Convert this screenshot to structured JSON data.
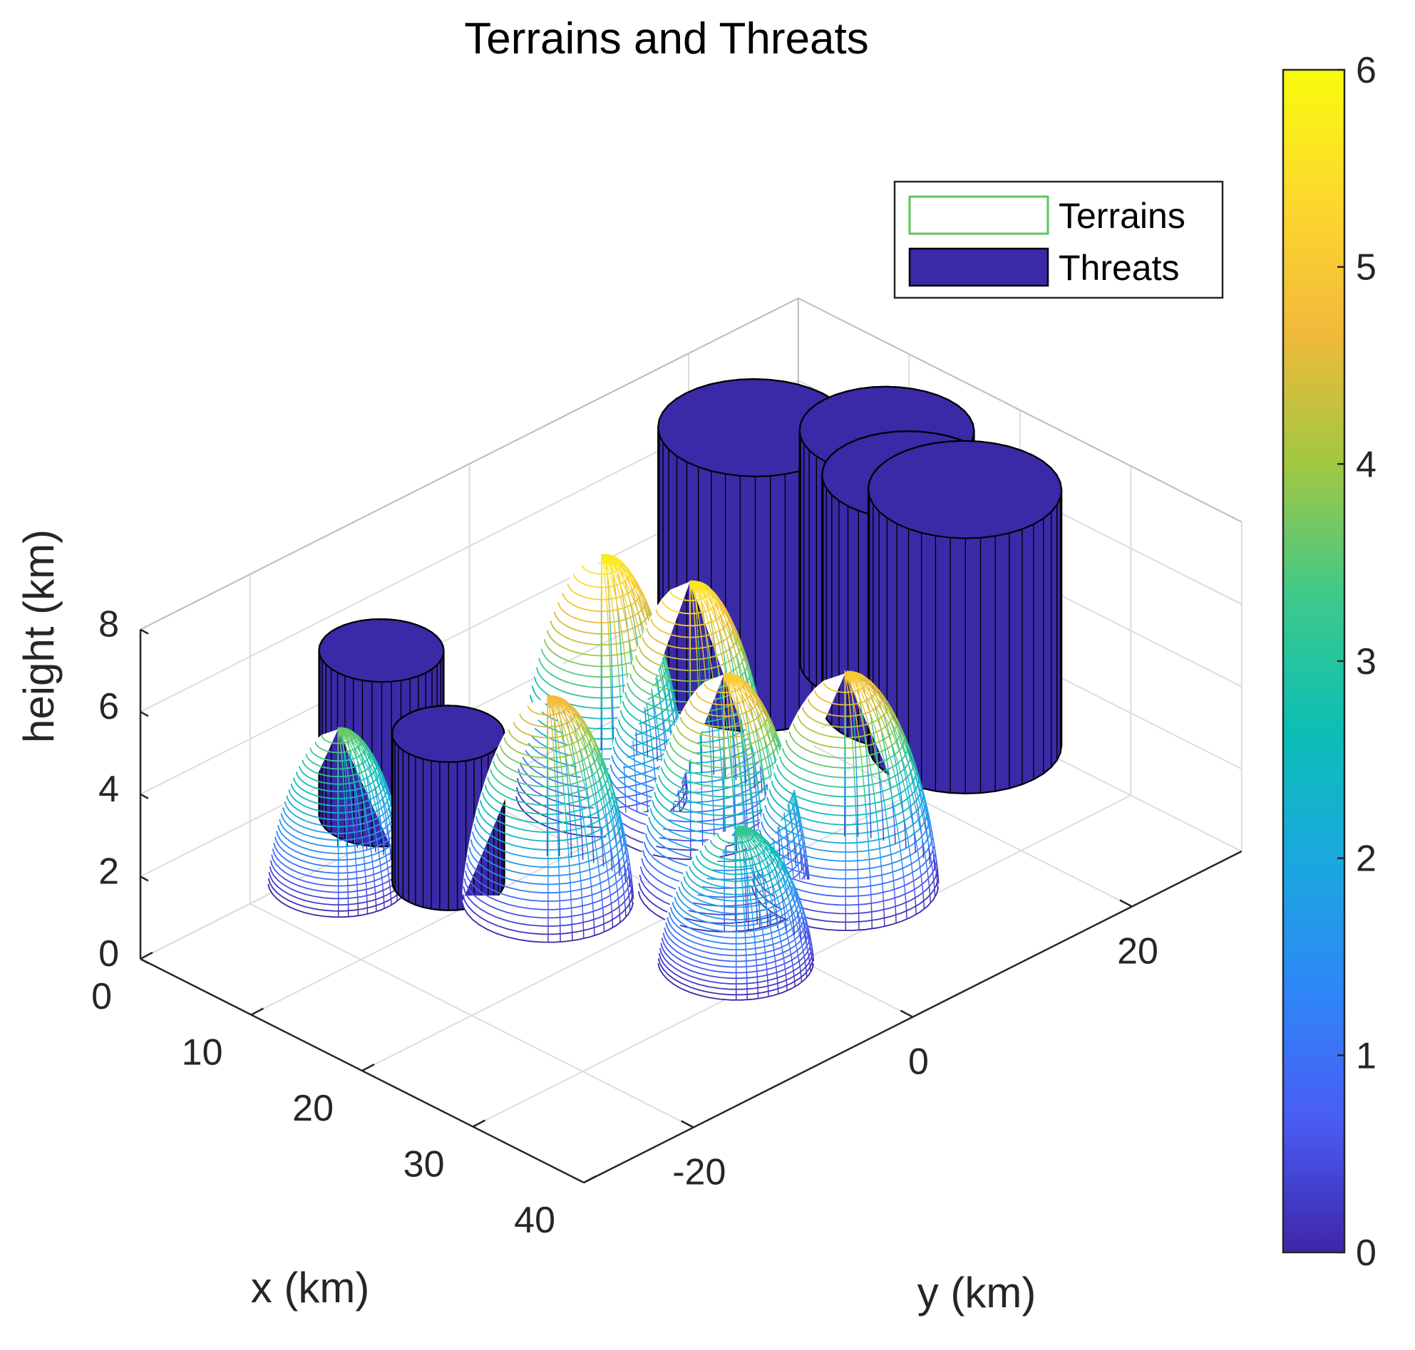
{
  "chart_data": {
    "type": "surface3d",
    "title": "Terrains and Threats",
    "xlabel": "x (km)",
    "ylabel": "y (km)",
    "zlabel": "height (km)",
    "xlim": [
      0,
      40
    ],
    "ylim": [
      -30,
      30
    ],
    "zlim": [
      0,
      8
    ],
    "xticks": [
      "0",
      "10",
      "20",
      "30",
      "40"
    ],
    "yticks": [
      "-20",
      "0",
      "20"
    ],
    "zticks": [
      "0",
      "2",
      "4",
      "6",
      "8"
    ],
    "grid": true,
    "legend": {
      "position": "top-right",
      "entries": [
        {
          "label": "Terrains",
          "color": "#5cc85a",
          "style": "outline"
        },
        {
          "label": "Threats",
          "color": "#3a2aa8",
          "style": "filled"
        }
      ]
    },
    "colorbar": {
      "range": [
        0,
        6
      ],
      "ticks": [
        "0",
        "1",
        "2",
        "3",
        "4",
        "5",
        "6"
      ],
      "colormap": [
        "#3e26a8",
        "#4a5cf4",
        "#2e87f7",
        "#1aa9df",
        "#0cbfb4",
        "#3fc98a",
        "#a1c842",
        "#f1b93a",
        "#fdd82e",
        "#f9fb0e"
      ]
    },
    "terrains": [
      {
        "x": 2,
        "y": -14,
        "radius": 4.5,
        "height": 3.7
      },
      {
        "x": 6,
        "y": 6,
        "radius": 5.5,
        "height": 5.8
      },
      {
        "x": 12,
        "y": 8,
        "radius": 5.5,
        "height": 5.7
      },
      {
        "x": 13,
        "y": -6,
        "radius": 5.5,
        "height": 4.9
      },
      {
        "x": 20,
        "y": 3,
        "radius": 5.5,
        "height": 5.2
      },
      {
        "x": 27,
        "y": -3,
        "radius": 5.0,
        "height": 3.2
      },
      {
        "x": 25,
        "y": 9,
        "radius": 6.0,
        "height": 5.1
      }
    ],
    "threats": [
      {
        "x": -2,
        "y": -6,
        "radius": 4,
        "height": 4
      },
      {
        "x": 7,
        "y": -9,
        "radius": 3.6,
        "height": 3.6
      },
      {
        "x": 3,
        "y": 23,
        "radius": 6.2,
        "height": 6.2
      },
      {
        "x": 7,
        "y": 31,
        "radius": 5.6,
        "height": 5.6
      },
      {
        "x": 12,
        "y": 28,
        "radius": 5.6,
        "height": 5.6
      },
      {
        "x": 18,
        "y": 27,
        "radius": 6.2,
        "height": 6.2
      }
    ]
  }
}
